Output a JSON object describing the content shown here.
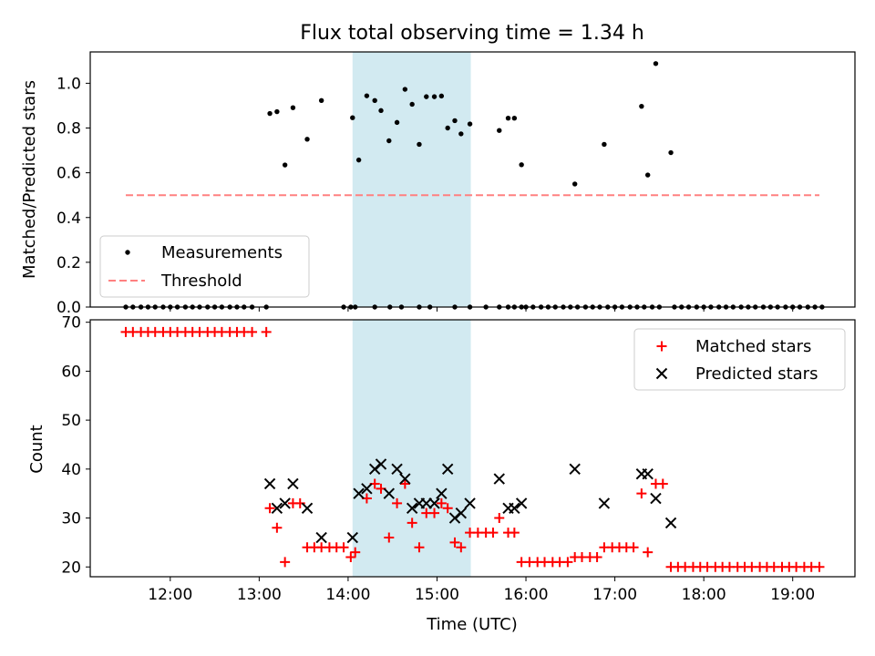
{
  "chart_data": [
    {
      "type": "scatter",
      "title": "Flux total observing time = 1.34 h",
      "xlabel": "",
      "ylabel": "Matched/Predicted stars",
      "xlim": [
        11.1,
        19.7
      ],
      "ylim": [
        0.0,
        1.14
      ],
      "yticks": [
        "0.0",
        "0.2",
        "0.4",
        "0.6",
        "0.8",
        "1.0"
      ],
      "highlight_span": [
        14.05,
        15.38
      ],
      "highlight_color": "#add8e6",
      "legend": {
        "placement": "lower-left",
        "entries": [
          "Measurements",
          "Threshold"
        ]
      },
      "series": [
        {
          "name": "Measurements",
          "marker": "dot",
          "color": "#000000",
          "points": [
            [
              11.5,
              0
            ],
            [
              11.58,
              0
            ],
            [
              11.67,
              0
            ],
            [
              11.75,
              0
            ],
            [
              11.83,
              0
            ],
            [
              11.92,
              0
            ],
            [
              12.0,
              0
            ],
            [
              12.08,
              0
            ],
            [
              12.17,
              0
            ],
            [
              12.25,
              0
            ],
            [
              12.33,
              0
            ],
            [
              12.42,
              0
            ],
            [
              12.5,
              0
            ],
            [
              12.58,
              0
            ],
            [
              12.67,
              0
            ],
            [
              12.75,
              0
            ],
            [
              12.83,
              0
            ],
            [
              12.92,
              0
            ],
            [
              13.08,
              0
            ],
            [
              13.12,
              0.865
            ],
            [
              13.2,
              0.873
            ],
            [
              13.29,
              0.635
            ],
            [
              13.38,
              0.891
            ],
            [
              13.54,
              0.75
            ],
            [
              13.7,
              0.923
            ],
            [
              13.95,
              0
            ],
            [
              14.03,
              0
            ],
            [
              14.08,
              0
            ],
            [
              14.3,
              0
            ],
            [
              14.47,
              0
            ],
            [
              14.6,
              0
            ],
            [
              14.8,
              0
            ],
            [
              14.92,
              0
            ],
            [
              15.2,
              0
            ],
            [
              15.37,
              0
            ],
            [
              15.55,
              0
            ],
            [
              15.7,
              0
            ],
            [
              15.8,
              0
            ],
            [
              15.87,
              0
            ],
            [
              15.95,
              0
            ],
            [
              14.05,
              0.846
            ],
            [
              14.12,
              0.657
            ],
            [
              14.21,
              0.944
            ],
            [
              14.3,
              0.923
            ],
            [
              14.37,
              0.878
            ],
            [
              14.46,
              0.743
            ],
            [
              14.55,
              0.825
            ],
            [
              14.64,
              0.973
            ],
            [
              14.72,
              0.906
            ],
            [
              14.8,
              0.727
            ],
            [
              14.88,
              0.94
            ],
            [
              14.97,
              0.94
            ],
            [
              15.05,
              0.943
            ],
            [
              15.12,
              0.8
            ],
            [
              15.2,
              0.833
            ],
            [
              15.27,
              0.774
            ],
            [
              15.37,
              0.818
            ],
            [
              15.7,
              0.789
            ],
            [
              15.8,
              0.844
            ],
            [
              15.87,
              0.844
            ],
            [
              15.95,
              0.636
            ],
            [
              16.0,
              0
            ],
            [
              16.08,
              0
            ],
            [
              16.17,
              0
            ],
            [
              16.25,
              0
            ],
            [
              16.33,
              0
            ],
            [
              16.42,
              0
            ],
            [
              16.5,
              0
            ],
            [
              16.58,
              0
            ],
            [
              16.67,
              0
            ],
            [
              16.75,
              0
            ],
            [
              16.83,
              0
            ],
            [
              16.92,
              0
            ],
            [
              17.0,
              0
            ],
            [
              17.08,
              0
            ],
            [
              17.17,
              0
            ],
            [
              17.25,
              0
            ],
            [
              17.33,
              0
            ],
            [
              17.42,
              0
            ],
            [
              17.5,
              0
            ],
            [
              16.55,
              0.55
            ],
            [
              16.88,
              0.727
            ],
            [
              17.3,
              0.897
            ],
            [
              17.37,
              0.59
            ],
            [
              17.46,
              1.088
            ],
            [
              17.63,
              0.69
            ],
            [
              17.67,
              0
            ],
            [
              17.75,
              0
            ],
            [
              17.83,
              0
            ],
            [
              17.92,
              0
            ],
            [
              18.0,
              0
            ],
            [
              18.08,
              0
            ],
            [
              18.17,
              0
            ],
            [
              18.25,
              0
            ],
            [
              18.33,
              0
            ],
            [
              18.42,
              0
            ],
            [
              18.5,
              0
            ],
            [
              18.58,
              0
            ],
            [
              18.67,
              0
            ],
            [
              18.75,
              0
            ],
            [
              18.83,
              0
            ],
            [
              18.92,
              0
            ],
            [
              19.0,
              0
            ],
            [
              19.08,
              0
            ],
            [
              19.17,
              0
            ],
            [
              19.25,
              0
            ],
            [
              19.33,
              0
            ]
          ]
        },
        {
          "name": "Threshold",
          "line": "dashed",
          "color": "#ff8080",
          "points": [
            [
              11.5,
              0.5
            ],
            [
              19.3,
              0.5
            ]
          ]
        }
      ]
    },
    {
      "type": "scatter",
      "title": "",
      "xlabel": "Time (UTC)",
      "ylabel": "Count",
      "xlim": [
        11.1,
        19.7
      ],
      "ylim": [
        18,
        70.5
      ],
      "xticks": [
        {
          "value": 12,
          "label": "12:00"
        },
        {
          "value": 13,
          "label": "13:00"
        },
        {
          "value": 14,
          "label": "14:00"
        },
        {
          "value": 15,
          "label": "15:00"
        },
        {
          "value": 16,
          "label": "16:00"
        },
        {
          "value": 17,
          "label": "17:00"
        },
        {
          "value": 18,
          "label": "18:00"
        },
        {
          "value": 19,
          "label": "19:00"
        }
      ],
      "yticks": [
        "20",
        "30",
        "40",
        "50",
        "60",
        "70"
      ],
      "highlight_span": [
        14.05,
        15.38
      ],
      "highlight_color": "#add8e6",
      "legend": {
        "placement": "top-right",
        "entries": [
          "Matched stars",
          "Predicted stars"
        ]
      },
      "series": [
        {
          "name": "Matched stars",
          "marker": "plus",
          "color": "#ff0000",
          "points": [
            [
              11.5,
              68
            ],
            [
              11.58,
              68
            ],
            [
              11.67,
              68
            ],
            [
              11.75,
              68
            ],
            [
              11.83,
              68
            ],
            [
              11.92,
              68
            ],
            [
              12.0,
              68
            ],
            [
              12.08,
              68
            ],
            [
              12.17,
              68
            ],
            [
              12.25,
              68
            ],
            [
              12.33,
              68
            ],
            [
              12.42,
              68
            ],
            [
              12.5,
              68
            ],
            [
              12.58,
              68
            ],
            [
              12.67,
              68
            ],
            [
              12.75,
              68
            ],
            [
              12.83,
              68
            ],
            [
              12.92,
              68
            ],
            [
              13.08,
              68
            ],
            [
              13.12,
              32
            ],
            [
              13.2,
              28
            ],
            [
              13.29,
              21
            ],
            [
              13.38,
              33
            ],
            [
              13.46,
              33
            ],
            [
              13.54,
              24
            ],
            [
              13.62,
              24
            ],
            [
              13.7,
              24
            ],
            [
              13.79,
              24
            ],
            [
              13.87,
              24
            ],
            [
              13.95,
              24
            ],
            [
              14.03,
              22
            ],
            [
              14.08,
              23
            ],
            [
              14.21,
              34
            ],
            [
              14.3,
              37
            ],
            [
              14.37,
              36
            ],
            [
              14.46,
              26
            ],
            [
              14.55,
              33
            ],
            [
              14.64,
              37
            ],
            [
              14.72,
              29
            ],
            [
              14.8,
              24
            ],
            [
              14.88,
              31
            ],
            [
              14.97,
              31
            ],
            [
              15.05,
              33
            ],
            [
              15.12,
              32
            ],
            [
              15.2,
              25
            ],
            [
              15.27,
              24
            ],
            [
              15.37,
              27
            ],
            [
              15.46,
              27
            ],
            [
              15.55,
              27
            ],
            [
              15.63,
              27
            ],
            [
              15.7,
              30
            ],
            [
              15.8,
              27
            ],
            [
              15.87,
              27
            ],
            [
              15.95,
              21
            ],
            [
              16.04,
              21
            ],
            [
              16.13,
              21
            ],
            [
              16.21,
              21
            ],
            [
              16.3,
              21
            ],
            [
              16.38,
              21
            ],
            [
              16.47,
              21
            ],
            [
              16.55,
              22
            ],
            [
              16.63,
              22
            ],
            [
              16.72,
              22
            ],
            [
              16.8,
              22
            ],
            [
              16.88,
              24
            ],
            [
              16.97,
              24
            ],
            [
              17.05,
              24
            ],
            [
              17.13,
              24
            ],
            [
              17.21,
              24
            ],
            [
              17.3,
              35
            ],
            [
              17.37,
              23
            ],
            [
              17.46,
              37
            ],
            [
              17.54,
              37
            ],
            [
              17.63,
              20
            ],
            [
              17.71,
              20
            ],
            [
              17.79,
              20
            ],
            [
              17.88,
              20
            ],
            [
              17.96,
              20
            ],
            [
              18.04,
              20
            ],
            [
              18.13,
              20
            ],
            [
              18.21,
              20
            ],
            [
              18.29,
              20
            ],
            [
              18.38,
              20
            ],
            [
              18.46,
              20
            ],
            [
              18.54,
              20
            ],
            [
              18.63,
              20
            ],
            [
              18.71,
              20
            ],
            [
              18.79,
              20
            ],
            [
              18.88,
              20
            ],
            [
              18.96,
              20
            ],
            [
              19.04,
              20
            ],
            [
              19.13,
              20
            ],
            [
              19.21,
              20
            ],
            [
              19.3,
              20
            ]
          ]
        },
        {
          "name": "Predicted stars",
          "marker": "x",
          "color": "#000000",
          "points": [
            [
              13.12,
              37
            ],
            [
              13.2,
              32
            ],
            [
              13.29,
              33
            ],
            [
              13.38,
              37
            ],
            [
              13.54,
              32
            ],
            [
              13.7,
              26
            ],
            [
              14.05,
              26
            ],
            [
              14.12,
              35
            ],
            [
              14.21,
              36
            ],
            [
              14.3,
              40
            ],
            [
              14.37,
              41
            ],
            [
              14.46,
              35
            ],
            [
              14.55,
              40
            ],
            [
              14.64,
              38
            ],
            [
              14.72,
              32
            ],
            [
              14.8,
              33
            ],
            [
              14.88,
              33
            ],
            [
              14.97,
              33
            ],
            [
              15.05,
              35
            ],
            [
              15.12,
              40
            ],
            [
              15.2,
              30
            ],
            [
              15.27,
              31
            ],
            [
              15.37,
              33
            ],
            [
              15.7,
              38
            ],
            [
              15.8,
              32
            ],
            [
              15.87,
              32
            ],
            [
              15.95,
              33
            ],
            [
              16.55,
              40
            ],
            [
              16.88,
              33
            ],
            [
              17.3,
              39
            ],
            [
              17.37,
              39
            ],
            [
              17.46,
              34
            ],
            [
              17.63,
              29
            ]
          ]
        }
      ]
    }
  ]
}
